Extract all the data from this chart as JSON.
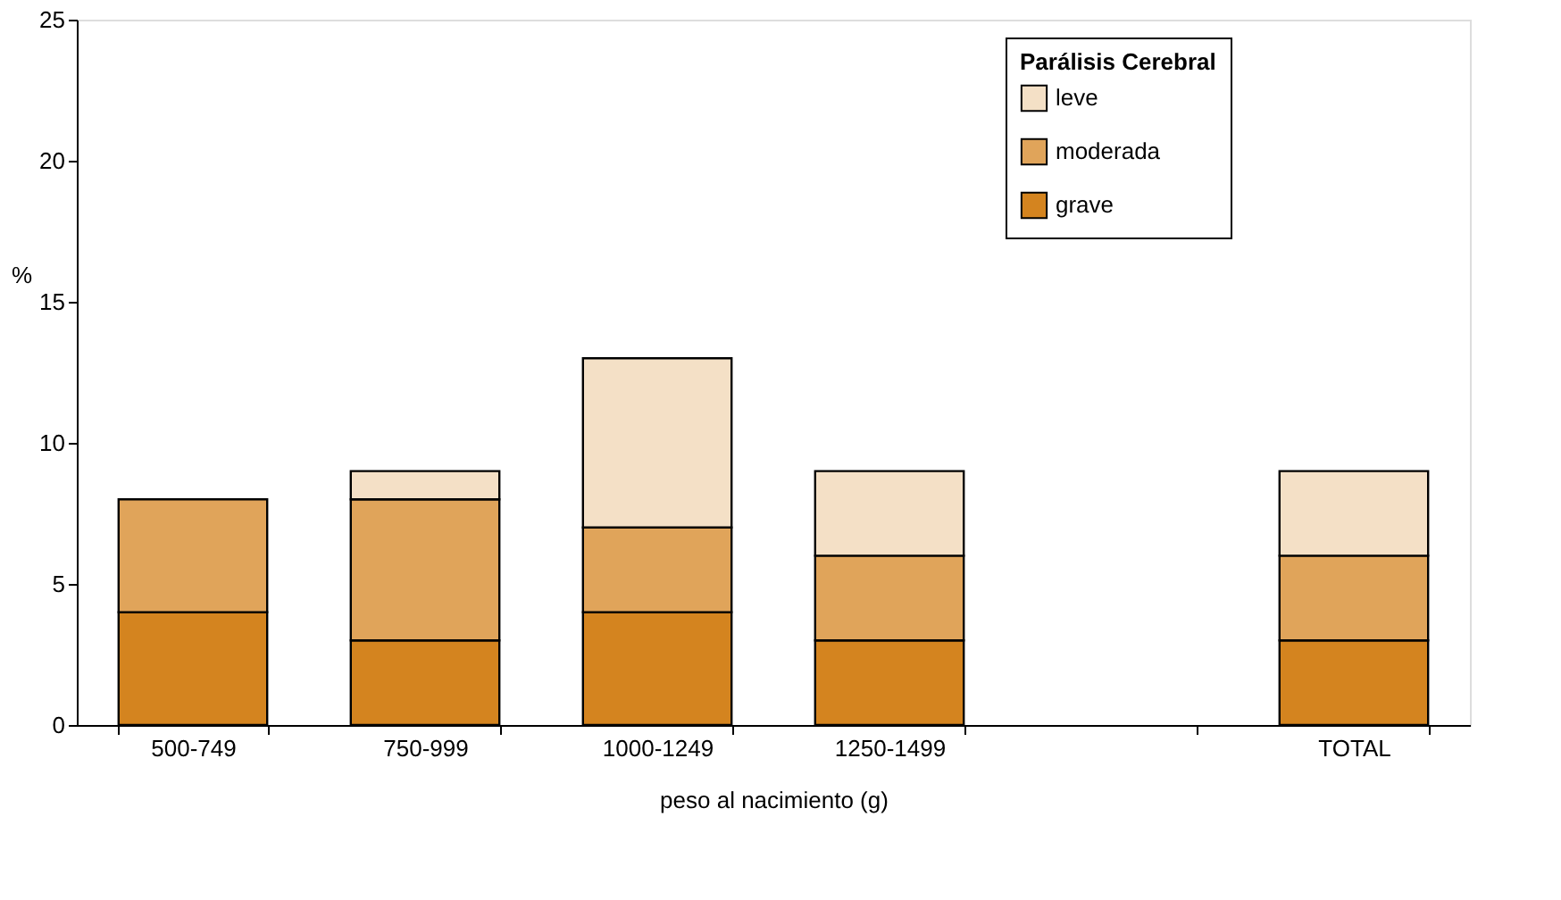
{
  "chart_data": {
    "type": "bar",
    "stacked": true,
    "xlabel": "peso al nacimiento (g)",
    "ylabel": "%",
    "legend_title": "Parálisis Cerebral",
    "legend": "top right",
    "grid": false,
    "categories": [
      "500-749",
      "750-999",
      "1000-1249",
      "1250-1499",
      null,
      "TOTAL"
    ],
    "ylim": [
      0,
      25
    ],
    "yticks": [
      0,
      5,
      10,
      15,
      20,
      25
    ],
    "series": [
      {
        "name": "grave",
        "color": "#d4841f",
        "values": [
          4,
          3,
          4,
          3,
          null,
          3
        ]
      },
      {
        "name": "moderada",
        "color": "#e0a45a",
        "values": [
          4,
          5,
          3,
          3,
          null,
          3
        ]
      },
      {
        "name": "leve",
        "color": "#f4e0c6",
        "values": [
          null,
          1,
          6,
          3,
          null,
          3
        ]
      }
    ]
  }
}
